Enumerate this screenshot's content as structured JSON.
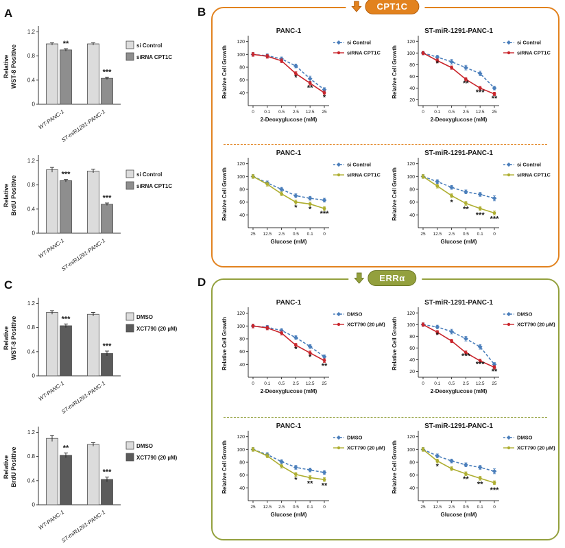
{
  "panels": {
    "A": {
      "letter": "A"
    },
    "B": {
      "letter": "B",
      "header": "CPT1C",
      "accent": "#e2821e",
      "accent_dark": "#b55f0d"
    },
    "C": {
      "letter": "C"
    },
    "D": {
      "letter": "D",
      "header": "ERRα",
      "accent": "#93a03d",
      "accent_dark": "#6e7a26"
    }
  },
  "colors": {
    "control_blue": "#4a7ebb",
    "treatment_red": "#c9252b",
    "treatment_olive": "#aeae30",
    "bar_light": "#dcdcdc",
    "bar_dark_a": "#8e8e8e",
    "bar_dark_c": "#5b5b5b",
    "axis": "#333333"
  },
  "chart_data": [
    {
      "id": "A1",
      "type": "bar",
      "ylabel_lines": [
        "Relative",
        "WST-8 Positive"
      ],
      "ylim": [
        0,
        1.25
      ],
      "yticks": [
        0,
        0.4,
        0.8,
        1.2
      ],
      "categories": [
        "WT-PANC-1",
        "ST-miR1291-PANC-1"
      ],
      "series": [
        {
          "name": "si Control",
          "color": "#dcdcdc",
          "values": [
            1.0,
            1.0
          ],
          "errors": [
            0.02,
            0.02
          ]
        },
        {
          "name": "siRNA CPT1C",
          "color": "#8e8e8e",
          "values": [
            0.9,
            0.43
          ],
          "errors": [
            0.02,
            0.02
          ]
        }
      ],
      "stars": [
        {
          "cat": 0,
          "series": 1,
          "text": "**"
        },
        {
          "cat": 1,
          "series": 1,
          "text": "***"
        }
      ]
    },
    {
      "id": "A2",
      "type": "bar",
      "ylabel_lines": [
        "Relative",
        "BrdU Positive"
      ],
      "ylim": [
        0,
        1.25
      ],
      "yticks": [
        0,
        0.4,
        0.8,
        1.2
      ],
      "categories": [
        "WT-PANC-1",
        "ST-miR1291-PANC-1"
      ],
      "series": [
        {
          "name": "si Control",
          "color": "#dcdcdc",
          "values": [
            1.05,
            1.03
          ],
          "errors": [
            0.04,
            0.03
          ]
        },
        {
          "name": "siRNA CPT1C",
          "color": "#8e8e8e",
          "values": [
            0.87,
            0.48
          ],
          "errors": [
            0.02,
            0.02
          ]
        }
      ],
      "stars": [
        {
          "cat": 0,
          "series": 1,
          "text": "***"
        },
        {
          "cat": 1,
          "series": 1,
          "text": "***"
        }
      ]
    },
    {
      "id": "C1",
      "type": "bar",
      "ylabel_lines": [
        "Relative",
        "WST-8 Positive"
      ],
      "ylim": [
        0,
        1.25
      ],
      "yticks": [
        0,
        0.4,
        0.8,
        1.2
      ],
      "categories": [
        "WT-PANC-1",
        "ST-miR1291-PANC-1"
      ],
      "series": [
        {
          "name": "DMSO",
          "color": "#dcdcdc",
          "values": [
            1.05,
            1.02
          ],
          "errors": [
            0.03,
            0.03
          ]
        },
        {
          "name": "XCT790 (20 µM)",
          "color": "#5b5b5b",
          "values": [
            0.83,
            0.37
          ],
          "errors": [
            0.03,
            0.04
          ]
        }
      ],
      "stars": [
        {
          "cat": 0,
          "series": 1,
          "text": "***"
        },
        {
          "cat": 1,
          "series": 1,
          "text": "***"
        }
      ]
    },
    {
      "id": "C2",
      "type": "bar",
      "ylabel_lines": [
        "Relative",
        "BrdU Positive"
      ],
      "ylim": [
        0,
        1.25
      ],
      "yticks": [
        0,
        0.4,
        0.8,
        1.2
      ],
      "categories": [
        "WT-PANC-1",
        "ST-miR1291-PANC-1"
      ],
      "series": [
        {
          "name": "DMSO",
          "color": "#dcdcdc",
          "values": [
            1.1,
            1.0
          ],
          "errors": [
            0.05,
            0.03
          ]
        },
        {
          "name": "XCT790 (20 µM)",
          "color": "#5b5b5b",
          "values": [
            0.82,
            0.42
          ],
          "errors": [
            0.04,
            0.04
          ]
        }
      ],
      "stars": [
        {
          "cat": 0,
          "series": 1,
          "text": "**"
        },
        {
          "cat": 1,
          "series": 1,
          "text": "***"
        }
      ]
    },
    {
      "id": "B1",
      "type": "line",
      "title": "PANC-1",
      "xlabel": "2-Deoxyglucose (mM)",
      "ylabel": "Relative Cell Growth",
      "x_categories": [
        "0",
        "0.1",
        "0.5",
        "2.5",
        "12.5",
        "25"
      ],
      "ylim": [
        20,
        125
      ],
      "yticks": [
        40,
        60,
        80,
        100,
        120
      ],
      "series": [
        {
          "name": "si Control",
          "color": "#4a7ebb",
          "dashed": true,
          "marker": "diamond",
          "values": [
            100,
            98,
            93,
            82,
            62,
            45
          ],
          "errors": [
            3,
            3,
            3,
            3,
            4,
            3
          ]
        },
        {
          "name": "siRNA CPT1C",
          "color": "#c9252b",
          "dashed": false,
          "marker": "circle",
          "values": [
            100,
            97,
            90,
            70,
            55,
            40
          ],
          "errors": [
            3,
            3,
            3,
            3,
            3,
            3
          ]
        }
      ],
      "stars": [
        {
          "xi": 3,
          "y": 60,
          "text": "*"
        },
        {
          "xi": 4,
          "y": 44,
          "text": "**"
        },
        {
          "xi": 5,
          "y": 29,
          "text": "*"
        }
      ]
    },
    {
      "id": "B2",
      "type": "line",
      "title": "ST-miR-1291-PANC-1",
      "xlabel": "2-Deoxyglucose (mM)",
      "ylabel": "Relative Cell Growth",
      "x_categories": [
        "0",
        "0.1",
        "0.5",
        "2.5",
        "12.5",
        "25"
      ],
      "ylim": [
        10,
        125
      ],
      "yticks": [
        20,
        40,
        60,
        80,
        100,
        120
      ],
      "series": [
        {
          "name": "si Control",
          "color": "#4a7ebb",
          "dashed": true,
          "marker": "diamond",
          "values": [
            100,
            93,
            85,
            75,
            65,
            40
          ],
          "errors": [
            3,
            3,
            4,
            4,
            4,
            3
          ]
        },
        {
          "name": "siRNA CPT1C",
          "color": "#c9252b",
          "dashed": false,
          "marker": "circle",
          "values": [
            100,
            87,
            75,
            55,
            40,
            30
          ],
          "errors": [
            3,
            3,
            3,
            3,
            3,
            3
          ]
        }
      ],
      "stars": [
        {
          "xi": 1,
          "y": 78,
          "text": "*"
        },
        {
          "xi": 3,
          "y": 44,
          "text": "**"
        },
        {
          "xi": 4,
          "y": 29,
          "text": "***"
        },
        {
          "xi": 5,
          "y": 18,
          "text": "**"
        }
      ]
    },
    {
      "id": "B3",
      "type": "line",
      "title": "PANC-1",
      "xlabel": "Glucose (mM)",
      "ylabel": "Relative Cell Growth",
      "x_categories": [
        "25",
        "12.5",
        "2.5",
        "0.5",
        "0.1",
        "0"
      ],
      "ylim": [
        20,
        125
      ],
      "yticks": [
        40,
        60,
        80,
        100,
        120
      ],
      "series": [
        {
          "name": "si Control",
          "color": "#4a7ebb",
          "dashed": true,
          "marker": "diamond",
          "values": [
            100,
            90,
            80,
            70,
            66,
            63
          ],
          "errors": [
            3,
            3,
            3,
            3,
            3,
            3
          ]
        },
        {
          "name": "siRNA CPT1C",
          "color": "#aeae30",
          "dashed": false,
          "marker": "circle",
          "values": [
            100,
            88,
            73,
            60,
            57,
            50
          ],
          "errors": [
            3,
            3,
            3,
            3,
            3,
            3
          ]
        }
      ],
      "stars": [
        {
          "xi": 3,
          "y": 48,
          "text": "*"
        },
        {
          "xi": 4,
          "y": 45,
          "text": "*"
        },
        {
          "xi": 5,
          "y": 38,
          "text": "***"
        }
      ]
    },
    {
      "id": "B4",
      "type": "line",
      "title": "ST-miR-1291-PANC-1",
      "xlabel": "Glucose (mM)",
      "ylabel": "Relative Cell Growth",
      "x_categories": [
        "25",
        "12.5",
        "2.5",
        "0.5",
        "0.1",
        "0"
      ],
      "ylim": [
        20,
        125
      ],
      "yticks": [
        40,
        60,
        80,
        100,
        120
      ],
      "series": [
        {
          "name": "si Control",
          "color": "#4a7ebb",
          "dashed": true,
          "marker": "diamond",
          "values": [
            100,
            92,
            83,
            76,
            72,
            66
          ],
          "errors": [
            3,
            3,
            3,
            3,
            3,
            4
          ]
        },
        {
          "name": "siRNA CPT1C",
          "color": "#aeae30",
          "dashed": false,
          "marker": "circle",
          "values": [
            100,
            85,
            70,
            58,
            50,
            43
          ],
          "errors": [
            3,
            3,
            3,
            3,
            3,
            3
          ]
        }
      ],
      "stars": [
        {
          "xi": 2,
          "y": 56,
          "text": "*"
        },
        {
          "xi": 3,
          "y": 45,
          "text": "**"
        },
        {
          "xi": 4,
          "y": 36,
          "text": "***"
        },
        {
          "xi": 5,
          "y": 30,
          "text": "***"
        }
      ]
    },
    {
      "id": "D1",
      "type": "line",
      "title": "PANC-1",
      "xlabel": "2-Deoxyglucose (mM)",
      "ylabel": "Relative Cell Growth",
      "x_categories": [
        "0",
        "0.1",
        "0.5",
        "2.5",
        "12.5",
        "25"
      ],
      "ylim": [
        20,
        125
      ],
      "yticks": [
        40,
        60,
        80,
        100,
        120
      ],
      "series": [
        {
          "name": "DMSO",
          "color": "#4a7ebb",
          "dashed": true,
          "marker": "diamond",
          "values": [
            100,
            98,
            93,
            82,
            68,
            52
          ],
          "errors": [
            3,
            3,
            3,
            3,
            3,
            3
          ]
        },
        {
          "name": "XCT790 (20 µM)",
          "color": "#c9252b",
          "dashed": false,
          "marker": "circle",
          "values": [
            100,
            97,
            89,
            70,
            58,
            46
          ],
          "errors": [
            3,
            3,
            3,
            3,
            3,
            3
          ]
        }
      ],
      "stars": [
        {
          "xi": 3,
          "y": 60,
          "text": "*"
        },
        {
          "xi": 4,
          "y": 48,
          "text": "*"
        },
        {
          "xi": 5,
          "y": 34,
          "text": "**"
        }
      ]
    },
    {
      "id": "D2",
      "type": "line",
      "title": "ST-miR-1291-PANC-1",
      "xlabel": "2-Deoxyglucose (mM)",
      "ylabel": "Relative Cell Growth",
      "x_categories": [
        "0",
        "0.1",
        "0.5",
        "2.5",
        "12.5",
        "25"
      ],
      "ylim": [
        10,
        125
      ],
      "yticks": [
        20,
        40,
        60,
        80,
        100,
        120
      ],
      "series": [
        {
          "name": "DMSO",
          "color": "#4a7ebb",
          "dashed": true,
          "marker": "diamond",
          "values": [
            100,
            96,
            88,
            76,
            62,
            32
          ],
          "errors": [
            3,
            3,
            4,
            4,
            4,
            3
          ]
        },
        {
          "name": "XCT790 (20 µM)",
          "color": "#c9252b",
          "dashed": false,
          "marker": "circle",
          "values": [
            100,
            87,
            72,
            52,
            38,
            27
          ],
          "errors": [
            3,
            3,
            3,
            3,
            3,
            3
          ]
        }
      ],
      "stars": [
        {
          "xi": 1,
          "y": 78,
          "text": "*"
        },
        {
          "xi": 3,
          "y": 42,
          "text": "***"
        },
        {
          "xi": 4,
          "y": 28,
          "text": "***"
        },
        {
          "xi": 5,
          "y": 16,
          "text": "**"
        }
      ]
    },
    {
      "id": "D3",
      "type": "line",
      "title": "PANC-1",
      "xlabel": "Glucose (mM)",
      "ylabel": "Relative Cell Growth",
      "x_categories": [
        "25",
        "12.5",
        "2.5",
        "0.5",
        "0.1",
        "0"
      ],
      "ylim": [
        20,
        125
      ],
      "yticks": [
        40,
        60,
        80,
        100,
        120
      ],
      "series": [
        {
          "name": "DMSO",
          "color": "#4a7ebb",
          "dashed": true,
          "marker": "diamond",
          "values": [
            100,
            92,
            81,
            72,
            68,
            64
          ],
          "errors": [
            3,
            3,
            3,
            3,
            3,
            3
          ]
        },
        {
          "name": "XCT790 (20 µM)",
          "color": "#aeae30",
          "dashed": false,
          "marker": "circle",
          "values": [
            100,
            90,
            74,
            61,
            56,
            53
          ],
          "errors": [
            3,
            3,
            3,
            3,
            3,
            3
          ]
        }
      ],
      "stars": [
        {
          "xi": 3,
          "y": 49,
          "text": "*"
        },
        {
          "xi": 4,
          "y": 43,
          "text": "**"
        },
        {
          "xi": 5,
          "y": 40,
          "text": "**"
        }
      ]
    },
    {
      "id": "D4",
      "type": "line",
      "title": "ST-miR-1291-PANC-1",
      "xlabel": "Glucose (mM)",
      "ylabel": "Relative Cell Growth",
      "x_categories": [
        "25",
        "12.5",
        "2.5",
        "0.5",
        "0.1",
        "0"
      ],
      "ylim": [
        20,
        125
      ],
      "yticks": [
        40,
        60,
        80,
        100,
        120
      ],
      "series": [
        {
          "name": "DMSO",
          "color": "#4a7ebb",
          "dashed": true,
          "marker": "diamond",
          "values": [
            100,
            90,
            82,
            76,
            72,
            66
          ],
          "errors": [
            3,
            3,
            3,
            3,
            3,
            4
          ]
        },
        {
          "name": "XCT790 (20 µM)",
          "color": "#aeae30",
          "dashed": false,
          "marker": "circle",
          "values": [
            100,
            82,
            70,
            62,
            55,
            48
          ],
          "errors": [
            3,
            3,
            3,
            3,
            3,
            3
          ]
        }
      ],
      "stars": [
        {
          "xi": 1,
          "y": 70,
          "text": "*"
        },
        {
          "xi": 3,
          "y": 50,
          "text": "**"
        },
        {
          "xi": 4,
          "y": 42,
          "text": "**"
        },
        {
          "xi": 5,
          "y": 33,
          "text": "***"
        }
      ]
    }
  ]
}
